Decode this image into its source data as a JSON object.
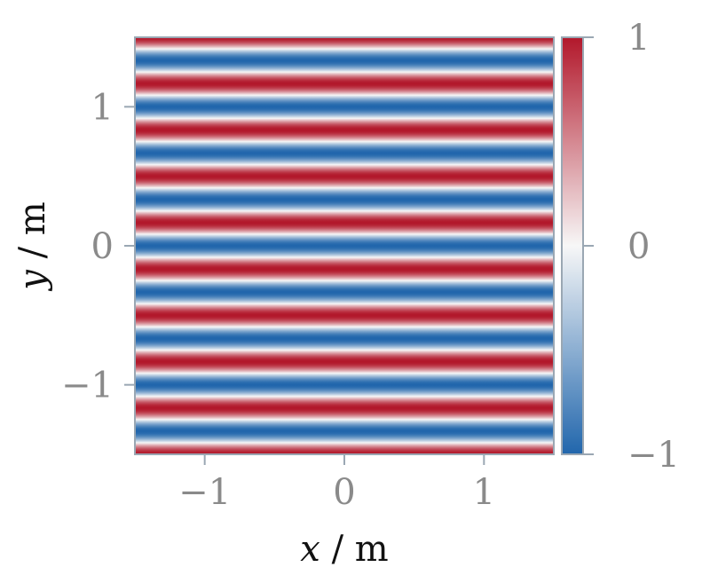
{
  "chart_data": {
    "type": "heatmap",
    "function": "cos",
    "orientation": "horizontal-stripes",
    "stripe_periods_shown": 9,
    "x": {
      "label_var": "x",
      "label_unit": " / m",
      "lim": [
        -1.5,
        1.5
      ],
      "ticks": [
        -1,
        0,
        1
      ],
      "tick_labels": [
        "−1",
        "0",
        "1"
      ]
    },
    "y": {
      "label_var": "y",
      "label_unit": " / m",
      "lim": [
        -1.5,
        1.5
      ],
      "ticks": [
        -1,
        0,
        1
      ],
      "tick_labels": [
        "−1",
        "0",
        "1"
      ]
    },
    "colorbar": {
      "lim": [
        -1,
        1
      ],
      "ticks": [
        -1,
        0,
        1
      ],
      "tick_labels": [
        "−1",
        "0",
        "1"
      ],
      "cmap": "RdBu_r"
    },
    "colors": {
      "high": "#b2182b",
      "mid": "#f7f7f7",
      "low": "#2166ac",
      "spine": "#9aa7b3",
      "tick_text": "#8a8a8a",
      "label_text": "#111111"
    }
  }
}
